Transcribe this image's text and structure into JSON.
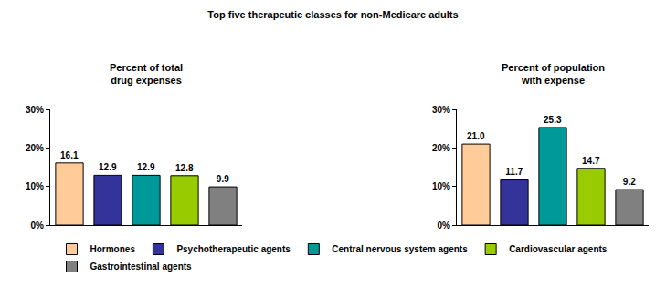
{
  "title": "Top five therapeutic classes for non-Medicare adults",
  "chart_data": [
    {
      "type": "bar",
      "title": "Percent of total\ndrug expenses",
      "categories": [
        "Hormones",
        "Psychotherapeutic agents",
        "Central nervous system agents",
        "Cardiovascular agents",
        "Gastrointestinal agents"
      ],
      "values": [
        16.1,
        12.9,
        12.9,
        12.8,
        9.9
      ],
      "value_labels": [
        "16.1",
        "12.9",
        "12.9",
        "12.8",
        "9.9"
      ],
      "colors": [
        "#ffcc99",
        "#333399",
        "#009999",
        "#99cc00",
        "#808080"
      ],
      "ylim": [
        0,
        30
      ],
      "yticks": [
        {
          "value": 0,
          "label": "0%"
        },
        {
          "value": 10,
          "label": "10%"
        },
        {
          "value": 20,
          "label": "20%"
        },
        {
          "value": 30,
          "label": "30%"
        }
      ],
      "grid": false,
      "data_labels": true,
      "tick_labels": "y",
      "legend": "bottom"
    },
    {
      "type": "bar",
      "title": "Percent of population\nwith expense",
      "categories": [
        "Hormones",
        "Psychotherapeutic agents",
        "Central nervous system agents",
        "Cardiovascular agents",
        "Gastrointestinal agents"
      ],
      "values": [
        21.0,
        11.7,
        25.3,
        14.7,
        9.2
      ],
      "value_labels": [
        "21.0",
        "11.7",
        "25.3",
        "14.7",
        "9.2"
      ],
      "colors": [
        "#ffcc99",
        "#333399",
        "#009999",
        "#99cc00",
        "#808080"
      ],
      "ylim": [
        0,
        30
      ],
      "yticks": [
        {
          "value": 0,
          "label": "0%"
        },
        {
          "value": 10,
          "label": "10%"
        },
        {
          "value": 20,
          "label": "20%"
        },
        {
          "value": 30,
          "label": "30%"
        }
      ],
      "grid": false,
      "data_labels": true,
      "tick_labels": "y",
      "legend": "bottom"
    }
  ]
}
